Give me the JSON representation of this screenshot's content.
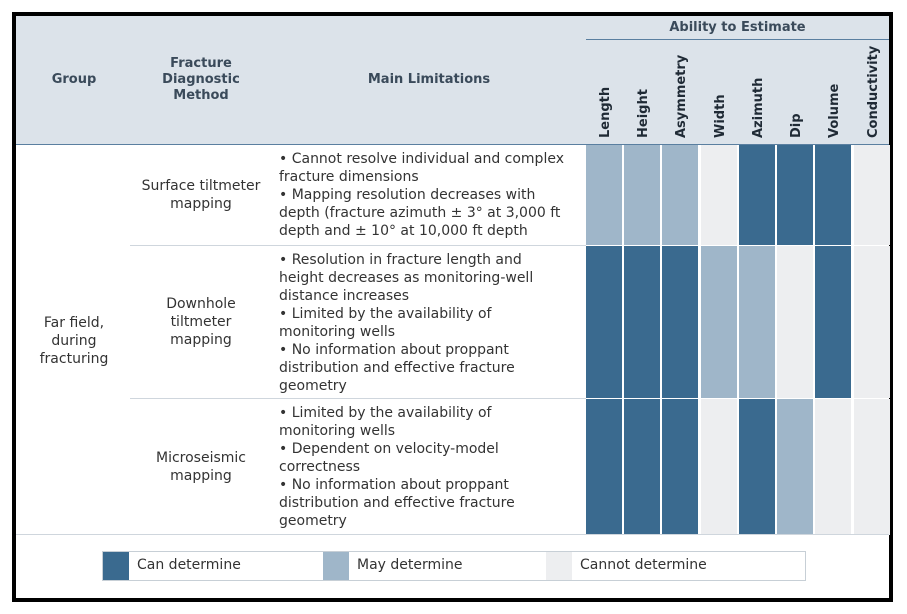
{
  "header": {
    "ability_title": "Ability to Estimate",
    "group": "Group",
    "method": [
      "Fracture",
      "Diagnostic",
      "Method"
    ],
    "limitations": "Main Limitations",
    "columns": [
      "Length",
      "Height",
      "Asymmetry",
      "Width",
      "Azimuth",
      "Dip",
      "Volume",
      "Conductivity"
    ]
  },
  "group_label": [
    "Far field,",
    "during",
    "fracturing"
  ],
  "rows": [
    {
      "method": [
        "Surface tiltmeter",
        "mapping"
      ],
      "limitations": [
        "• Cannot resolve individual and complex",
        "fracture dimensions",
        "• Mapping resolution decreases with",
        "depth (fracture azimuth ± 3° at 3,000 ft",
        "depth and ± 10° at 10,000 ft depth"
      ],
      "ability": [
        "may",
        "may",
        "may",
        "cannot",
        "can",
        "can",
        "can",
        "cannot"
      ]
    },
    {
      "method": [
        "Downhole",
        "tiltmeter",
        "mapping"
      ],
      "limitations": [
        "• Resolution in fracture length and",
        "height decreases as monitoring-well",
        "distance increases",
        "• Limited by the availability of",
        "monitoring wells",
        "• No information about proppant",
        "distribution and effective fracture",
        "geometry"
      ],
      "ability": [
        "can",
        "can",
        "can",
        "may",
        "may",
        "cannot",
        "can",
        "cannot"
      ]
    },
    {
      "method": [
        "Microseismic",
        "mapping"
      ],
      "limitations": [
        "• Limited by the availability of",
        "monitoring wells",
        "• Dependent on velocity-model",
        "correctness",
        "• No information about proppant",
        "distribution and effective fracture",
        "geometry"
      ],
      "ability": [
        "can",
        "can",
        "can",
        "cannot",
        "can",
        "may",
        "cannot",
        "cannot"
      ]
    }
  ],
  "colors": {
    "can": "#3a6a8f",
    "may": "#9fb6c9",
    "cannot": "#edeef0"
  },
  "legend": [
    {
      "key": "can",
      "label": "Can determine"
    },
    {
      "key": "may",
      "label": "May determine"
    },
    {
      "key": "cannot",
      "label": "Cannot determine"
    }
  ]
}
